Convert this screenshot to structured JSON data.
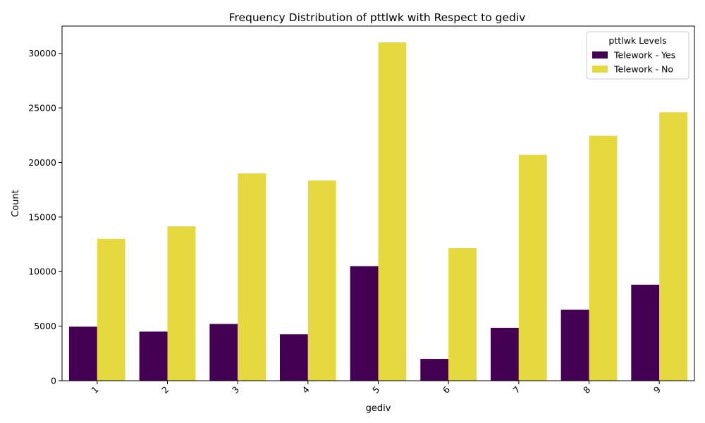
{
  "chart_data": {
    "type": "bar",
    "title": "Frequency Distribution of pttlwk with Respect to gediv",
    "xlabel": "gediv",
    "ylabel": "Count",
    "categories": [
      "1",
      "2",
      "3",
      "4",
      "5",
      "6",
      "7",
      "8",
      "9"
    ],
    "series": [
      {
        "name": "Telework - Yes",
        "color": "#440154",
        "values": [
          4950,
          4500,
          5200,
          4250,
          10500,
          2000,
          4850,
          6500,
          8800
        ]
      },
      {
        "name": "Telework - No",
        "color": "#e6d93f",
        "values": [
          13000,
          14150,
          19000,
          18350,
          31000,
          12150,
          20700,
          22450,
          24600
        ]
      }
    ],
    "ylim": [
      0,
      32500
    ],
    "yticks": [
      0,
      5000,
      10000,
      15000,
      20000,
      25000,
      30000
    ],
    "legend_title": "pttlwk Levels",
    "legend_position": "top-right",
    "grid": false
  }
}
